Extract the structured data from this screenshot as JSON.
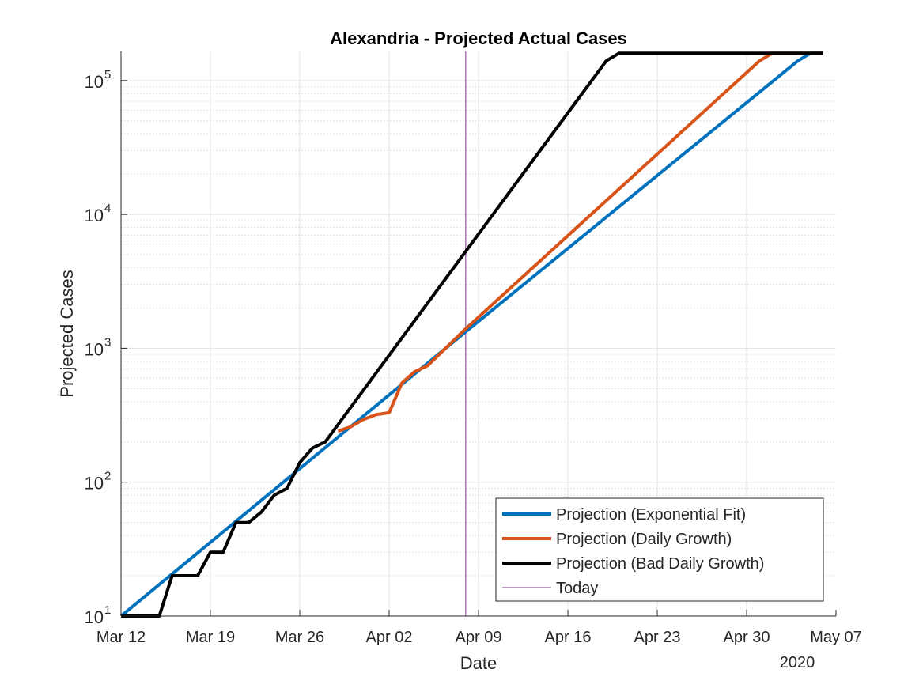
{
  "chart_data": {
    "type": "line",
    "title": "Alexandria - Projected Actual Cases",
    "xlabel": "Date",
    "ylabel": "Projected Cases",
    "y_scale": "log",
    "ylim": [
      10,
      165000
    ],
    "xlim": [
      "2020-03-12",
      "2020-05-07"
    ],
    "x_year_label": "2020",
    "x_ticks": [
      {
        "date": "2020-03-12",
        "label": "Mar 12"
      },
      {
        "date": "2020-03-19",
        "label": "Mar 19"
      },
      {
        "date": "2020-03-26",
        "label": "Mar 26"
      },
      {
        "date": "2020-04-02",
        "label": "Apr 02"
      },
      {
        "date": "2020-04-09",
        "label": "Apr 09"
      },
      {
        "date": "2020-04-16",
        "label": "Apr 16"
      },
      {
        "date": "2020-04-23",
        "label": "Apr 23"
      },
      {
        "date": "2020-04-30",
        "label": "Apr 30"
      },
      {
        "date": "2020-05-07",
        "label": "May 07"
      }
    ],
    "y_ticks": [
      {
        "value": 10,
        "base": "10",
        "exp": "1"
      },
      {
        "value": 100,
        "base": "10",
        "exp": "2"
      },
      {
        "value": 1000,
        "base": "10",
        "exp": "3"
      },
      {
        "value": 10000,
        "base": "10",
        "exp": "4"
      },
      {
        "value": 100000,
        "base": "10",
        "exp": "5"
      }
    ],
    "grid": true,
    "legend_position": "bottom-right",
    "series": [
      {
        "name": "Projection (Exponential Fit)",
        "color": "#0072BD",
        "points": [
          [
            "2020-03-12",
            10
          ],
          [
            "2020-04-08",
            1330
          ],
          [
            "2020-05-04",
            140000
          ],
          [
            "2020-05-05",
            160000
          ],
          [
            "2020-05-06",
            160000
          ]
        ]
      },
      {
        "name": "Projection (Daily Growth)",
        "color": "#D95319",
        "points": [
          [
            "2020-03-29",
            240
          ],
          [
            "2020-03-30",
            260
          ],
          [
            "2020-03-31",
            295
          ],
          [
            "2020-04-01",
            320
          ],
          [
            "2020-04-02",
            330
          ],
          [
            "2020-04-03",
            550
          ],
          [
            "2020-04-04",
            670
          ],
          [
            "2020-04-05",
            740
          ],
          [
            "2020-04-08",
            1400
          ],
          [
            "2020-05-01",
            140000
          ],
          [
            "2020-05-02",
            160000
          ],
          [
            "2020-05-06",
            160000
          ]
        ]
      },
      {
        "name": "Projection (Bad Daily Growth)",
        "color": "#000000",
        "points": [
          [
            "2020-03-12",
            10
          ],
          [
            "2020-03-15",
            10
          ],
          [
            "2020-03-16",
            20
          ],
          [
            "2020-03-18",
            20
          ],
          [
            "2020-03-19",
            30
          ],
          [
            "2020-03-20",
            30
          ],
          [
            "2020-03-21",
            50
          ],
          [
            "2020-03-22",
            50
          ],
          [
            "2020-03-23",
            60
          ],
          [
            "2020-03-24",
            80
          ],
          [
            "2020-03-25",
            90
          ],
          [
            "2020-03-26",
            140
          ],
          [
            "2020-03-27",
            180
          ],
          [
            "2020-03-28",
            200
          ],
          [
            "2020-04-08",
            5300
          ],
          [
            "2020-04-19",
            140000
          ],
          [
            "2020-04-20",
            160000
          ],
          [
            "2020-05-06",
            160000
          ]
        ]
      }
    ],
    "reference_lines": [
      {
        "name": "Today",
        "date": "2020-04-08",
        "color": "#7E2F8E"
      }
    ]
  }
}
